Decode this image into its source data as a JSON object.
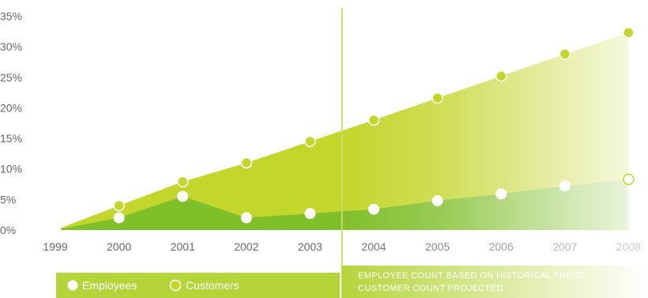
{
  "chart_data": {
    "type": "area",
    "x": [
      "1999",
      "2000",
      "2001",
      "2002",
      "2003",
      "2004",
      "2005",
      "2006",
      "2007",
      "2008"
    ],
    "series": [
      {
        "name": "Employees",
        "values": [
          0,
          2,
          5.5,
          2,
          2.7,
          3.4,
          4.8,
          5.9,
          7.2,
          8.3
        ],
        "color": "#7fbf2a"
      },
      {
        "name": "Customers",
        "values": [
          0,
          4,
          7.9,
          11,
          14.5,
          18,
          21.6,
          25.2,
          28.8,
          32.3
        ],
        "color": "#c3d62c"
      }
    ],
    "y_ticks": [
      "0%",
      "5%",
      "10%",
      "15%",
      "20%",
      "25%",
      "30%",
      "35%"
    ],
    "ylim": [
      0,
      35
    ],
    "grid": false,
    "projection_start": "2003.5",
    "projection_note": [
      "EMPLOYEE COUNT BASED ON HISTORICAL TREND",
      "CUSTOMER COUNT PROJECTED"
    ],
    "legend_position": "bottom-left"
  }
}
